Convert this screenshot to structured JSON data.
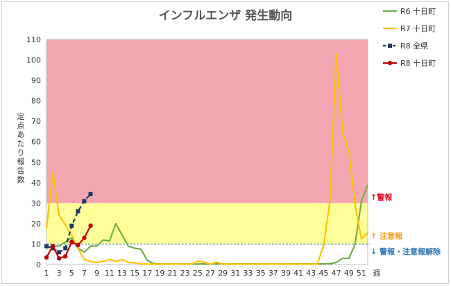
{
  "chart_data": {
    "type": "line",
    "title": "インフルエンザ 発生動向",
    "xlabel": "週",
    "ylabel": "定点あたり報告数",
    "xlim": [
      1,
      52
    ],
    "ylim": [
      0,
      110
    ],
    "x_ticks": [
      1,
      3,
      5,
      7,
      9,
      11,
      13,
      15,
      17,
      19,
      21,
      23,
      25,
      27,
      29,
      31,
      33,
      35,
      37,
      39,
      41,
      43,
      45,
      47,
      49,
      51
    ],
    "y_ticks": [
      0,
      10,
      20,
      30,
      40,
      50,
      60,
      70,
      80,
      90,
      100,
      110
    ],
    "grid": false,
    "legend_position": "top-right",
    "zones": [
      {
        "from": 30,
        "to": 110,
        "color": "#f4a6b2"
      },
      {
        "from": 10,
        "to": 30,
        "color": "#ffff99"
      }
    ],
    "threshold_line": {
      "value": 10,
      "color": "#2e75b6"
    },
    "annotations": [
      {
        "text": "↑警報",
        "y": 33,
        "color": "#e0102a"
      },
      {
        "text": "↑ 注意報",
        "y": 14,
        "color": "#f0a020"
      },
      {
        "text": "↓ 警報・注意報解除",
        "y": 6.5,
        "color": "#2e75b6"
      }
    ],
    "series": [
      {
        "name": "R6 十日町",
        "color": "#70ad47",
        "dash": "",
        "marker": false,
        "x": [
          1,
          2,
          3,
          4,
          5,
          6,
          7,
          8,
          9,
          10,
          11,
          12,
          13,
          14,
          15,
          16,
          17,
          18,
          19,
          20,
          21,
          22,
          23,
          24,
          25,
          26,
          27,
          28,
          29,
          30,
          31,
          32,
          33,
          34,
          35,
          36,
          37,
          38,
          39,
          40,
          41,
          42,
          43,
          44,
          45,
          46,
          47,
          48,
          49,
          50,
          51,
          52
        ],
        "values": [
          8,
          9,
          9,
          11,
          13,
          8,
          6,
          9,
          9,
          12,
          11.5,
          20,
          14.5,
          9,
          8,
          7.5,
          2,
          0.5,
          0.3,
          0.2,
          0.2,
          0.2,
          0.2,
          0.2,
          0.2,
          0.3,
          0.2,
          0.3,
          0.3,
          0.2,
          0.3,
          0.3,
          0.4,
          0.3,
          0.2,
          0.2,
          0.2,
          0.2,
          0.2,
          0.3,
          0.3,
          0.3,
          0.3,
          0.3,
          0.3,
          0.4,
          1,
          3,
          3,
          10,
          31,
          39
        ]
      },
      {
        "name": "R7 十日町",
        "color": "#ffc000",
        "dash": "",
        "marker": false,
        "x": [
          1,
          2,
          3,
          4,
          5,
          6,
          7,
          8,
          9,
          10,
          11,
          12,
          13,
          14,
          15,
          16,
          17,
          18,
          19,
          20,
          21,
          22,
          23,
          24,
          25,
          26,
          27,
          28,
          29,
          30,
          31,
          32,
          33,
          34,
          35,
          36,
          37,
          38,
          39,
          40,
          41,
          42,
          43,
          44,
          45,
          46,
          47,
          48,
          49,
          50,
          51,
          52
        ],
        "values": [
          17.5,
          45,
          24,
          19.5,
          14.5,
          8,
          2.5,
          1.5,
          1,
          1.5,
          2.5,
          1.5,
          2.5,
          1,
          0.8,
          0.3,
          0.2,
          0.2,
          0.2,
          0.2,
          0.2,
          0.2,
          0.2,
          0.2,
          1.5,
          1.2,
          0.2,
          1.2,
          0.2,
          0.2,
          0.2,
          0.2,
          0.2,
          0.2,
          0.2,
          0.2,
          0.2,
          0.2,
          0.2,
          0.2,
          0.2,
          0.2,
          0.2,
          0.2,
          9.5,
          31,
          103,
          65,
          55,
          29,
          12.5,
          15.5
        ]
      },
      {
        "name": "R8 全県",
        "color": "#1f3864",
        "dash": "6,4",
        "marker": true,
        "marker_shape": "square",
        "x": [
          1,
          2,
          3,
          4,
          5,
          6,
          7,
          8
        ],
        "values": [
          9,
          8,
          6,
          8,
          19,
          26,
          31,
          34.5
        ]
      },
      {
        "name": "R8 十日町",
        "color": "#c00000",
        "dash": "",
        "marker": true,
        "marker_shape": "circle",
        "x": [
          1,
          2,
          3,
          4,
          5,
          6,
          7,
          8
        ],
        "values": [
          3.5,
          9,
          3,
          4,
          11,
          9.5,
          13,
          19
        ]
      }
    ]
  }
}
